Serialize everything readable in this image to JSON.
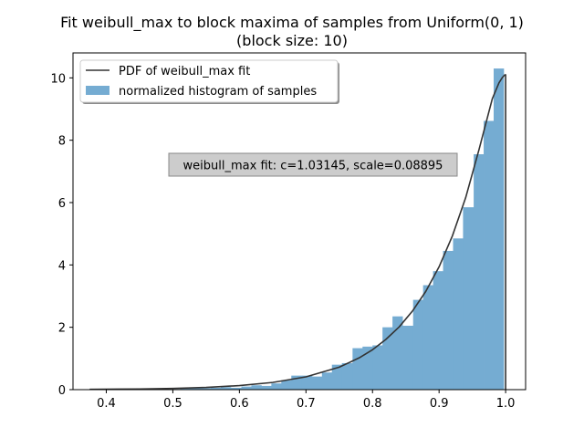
{
  "chart_data": {
    "type": "bar",
    "title": "Fit weibull_max to block maxima of samples from Uniform(0, 1)",
    "subtitle": "(block size: 10)",
    "xlabel": "",
    "ylabel": "",
    "xlim": [
      0.35,
      1.03
    ],
    "ylim": [
      0,
      10.8
    ],
    "x_ticks": [
      "0.4",
      "0.5",
      "0.6",
      "0.7",
      "0.8",
      "0.9",
      "1.0"
    ],
    "y_ticks": [
      "0",
      "2",
      "4",
      "6",
      "8",
      "10"
    ],
    "grid": false,
    "legend_placement": "top-left",
    "legend": [
      {
        "label": "PDF of weibull_max fit",
        "kind": "line",
        "color": "#333333"
      },
      {
        "label": "normalized histogram of samples",
        "kind": "patch",
        "color": "#75acd2"
      }
    ],
    "annotation": "weibull_max fit: c=1.03145, scale=0.08895",
    "series": [
      {
        "name": "normalized histogram of samples",
        "kind": "histogram",
        "color": "#75acd2",
        "bin_edges": [
          0.375,
          0.39,
          0.405,
          0.42,
          0.436,
          0.451,
          0.466,
          0.481,
          0.496,
          0.511,
          0.527,
          0.542,
          0.557,
          0.572,
          0.587,
          0.603,
          0.618,
          0.633,
          0.648,
          0.663,
          0.678,
          0.694,
          0.709,
          0.724,
          0.739,
          0.754,
          0.77,
          0.785,
          0.8,
          0.815,
          0.83,
          0.845,
          0.861,
          0.876,
          0.891,
          0.906,
          0.921,
          0.936,
          0.952,
          0.967,
          0.982,
          0.997
        ],
        "values": [
          0.02,
          0.0,
          0.0,
          0.0,
          0.0,
          0.0,
          0.0,
          0.0,
          0.02,
          0.05,
          0.05,
          0.05,
          0.06,
          0.08,
          0.06,
          0.1,
          0.14,
          0.12,
          0.2,
          0.3,
          0.45,
          0.45,
          0.42,
          0.55,
          0.8,
          0.85,
          1.33,
          1.38,
          1.42,
          2.0,
          2.35,
          2.05,
          2.88,
          3.35,
          3.8,
          4.45,
          4.85,
          5.85,
          7.55,
          8.62,
          10.3
        ]
      },
      {
        "name": "PDF of weibull_max fit",
        "kind": "line",
        "color": "#333333",
        "x": [
          0.375,
          0.45,
          0.5,
          0.55,
          0.6,
          0.65,
          0.7,
          0.75,
          0.78,
          0.8,
          0.82,
          0.84,
          0.86,
          0.88,
          0.9,
          0.92,
          0.94,
          0.96,
          0.98,
          0.99,
          0.995,
          0.9985,
          0.9995,
          1.0,
          1.0
        ],
        "y": [
          0.01,
          0.02,
          0.04,
          0.07,
          0.13,
          0.23,
          0.41,
          0.72,
          1.02,
          1.28,
          1.61,
          2.01,
          2.52,
          3.15,
          3.94,
          4.93,
          6.16,
          7.7,
          9.33,
          9.84,
          10.01,
          10.09,
          10.1,
          10.1,
          0.0
        ]
      }
    ]
  }
}
